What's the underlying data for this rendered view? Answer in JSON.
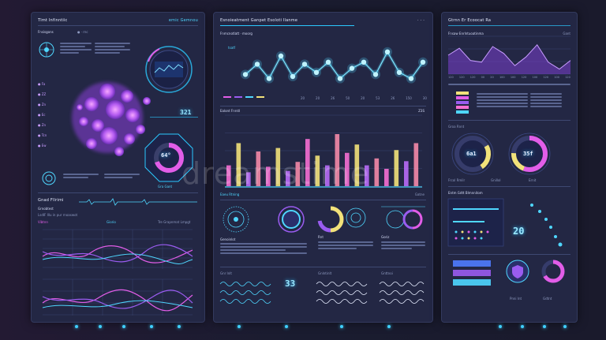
{
  "panel1": {
    "header_title": "Tlmt Infinntiic",
    "header_right": "emic  Gemnou",
    "sub_left": "Fnsisgons",
    "sub_mid": "●  · rnc",
    "ring_value": "321",
    "donut_value": "64°",
    "legend_rows": [
      "●  Fa",
      "●  ZZ",
      "●  Zn",
      "●  Ec",
      "●  Zn",
      "●  Tcn",
      "●  Ew"
    ],
    "section2_title": "Gnad Fllrimi",
    "section2_sub": "Grnobtest",
    "section2_note": "LsdIF Illu in pur rnoaswot",
    "chart_tabs": [
      "Vibtnn",
      "Giorio",
      "Tre Grapnmat Lmpgt"
    ],
    "donut_foot": "Gra    Gant",
    "colors": {
      "accent": "#4fd7ff",
      "magenta": "#e25de8",
      "purple": "#9a5cf0"
    }
  },
  "panel2": {
    "header_title": "Esnoieatment Ganpet Esoloti Ilanme",
    "header_right": "· · ·",
    "sub_title": "Fnmcnotlatt · moorg",
    "top_label": "tsatf",
    "axis_labels": [
      "20",
      "20",
      "26",
      "50",
      "20",
      "53",
      "26",
      "150",
      "30"
    ],
    "bar_section_title": "Ealont Fnrstl",
    "bar_section_right": "Z3S",
    "bar_footer_left": "Eaeu Rtning",
    "bar_footer_right": "Gatne",
    "circle_labels": [
      "Genoinlot",
      "Rnt",
      "Goriz"
    ],
    "value_33": "33",
    "bottom_labels": [
      "Gnr Inlt",
      "Gnlntinlt",
      "Gnttnoi"
    ],
    "line_points": [
      0.3,
      0.55,
      0.2,
      0.75,
      0.25,
      0.55,
      0.35,
      0.6,
      0.2,
      0.45,
      0.6,
      0.3,
      0.85,
      0.35,
      0.2,
      0.6
    ],
    "bar_values": [
      0.3,
      0.62,
      0.2,
      0.5,
      0.28,
      0.55,
      0.22,
      0.35,
      0.68,
      0.44,
      0.3,
      0.75,
      0.48,
      0.6,
      0.3,
      0.4,
      0.25,
      0.52,
      0.36,
      0.62
    ],
    "bar_colors": [
      "#f56fd3",
      "#f2e27a",
      "#b86bf7",
      "#f48aa8"
    ]
  },
  "panel3": {
    "header_title": "Gtrnn Er Ecoocat Ra",
    "sub_title": "Fnsaw Enrlntuoatinma",
    "sub_right": "Gant",
    "axis_labels": [
      "120",
      "120",
      "120",
      "00",
      "20",
      "100",
      "100",
      "120",
      "100",
      "120",
      "100",
      "120"
    ],
    "area_points": [
      0.5,
      0.7,
      0.35,
      0.3,
      0.75,
      0.55,
      0.2,
      0.45,
      0.8,
      0.3,
      0.1,
      0.35
    ],
    "donut_title": "Groa Rnnt",
    "donut1_value": "6a1",
    "donut2_value": "35f",
    "donut_labels": [
      "Frcol Rmilr",
      "Gnillol",
      "Ernit"
    ],
    "section_title": "Entm Gdtt Blmnnitom",
    "value_20": "20",
    "bottom_labels": [
      "Pnni Int",
      "Gdtnt"
    ]
  },
  "watermark": "dreamstime"
}
